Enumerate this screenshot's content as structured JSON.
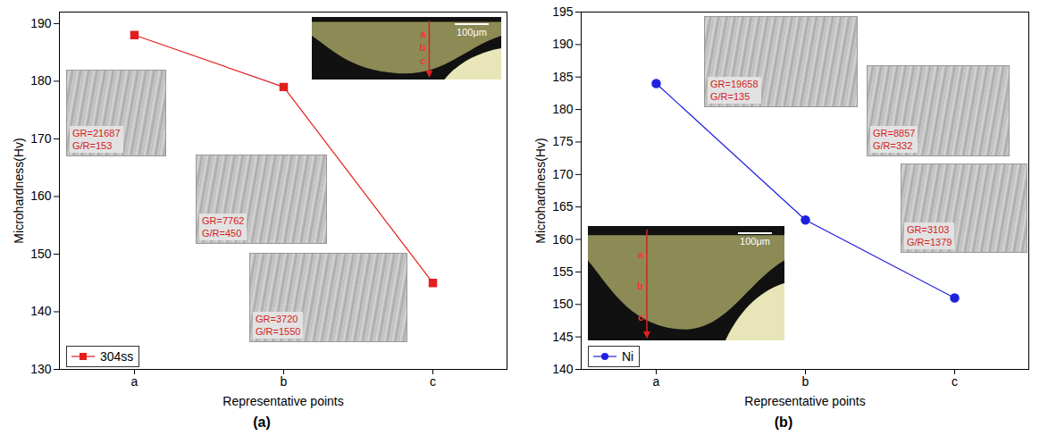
{
  "chart_data": [
    {
      "type": "line",
      "caption": "(a)",
      "x_label": "Representative points",
      "y_label": "Microhardness(Hv)",
      "categories": [
        "a",
        "b",
        "c"
      ],
      "series": [
        {
          "name": "304ss",
          "color": "#e41e1e",
          "marker": "square",
          "values": [
            188,
            179,
            145
          ]
        }
      ],
      "ylim": [
        130,
        192
      ],
      "yticks": [
        130,
        140,
        150,
        160,
        170,
        180,
        190
      ],
      "grid": false,
      "legend": "lower left",
      "annotations": [
        {
          "point": "a",
          "lines": [
            "GR=21687",
            "G/R=153"
          ]
        },
        {
          "point": "b",
          "lines": [
            "GR=7762",
            "G/R=450"
          ]
        },
        {
          "point": "c",
          "lines": [
            "GR=3720",
            "G/R=1550"
          ]
        }
      ],
      "cross_section": {
        "scale_bar": "100μm"
      }
    },
    {
      "type": "line",
      "caption": "(b)",
      "x_label": "Representative points",
      "y_label": "Microhardness(Hv)",
      "categories": [
        "a",
        "b",
        "c"
      ],
      "series": [
        {
          "name": "Ni",
          "color": "#2020e0",
          "marker": "circle",
          "values": [
            184,
            163,
            151
          ]
        }
      ],
      "ylim": [
        140,
        195
      ],
      "yticks": [
        140,
        145,
        150,
        155,
        160,
        165,
        170,
        175,
        180,
        185,
        190,
        195
      ],
      "grid": false,
      "legend": "lower left",
      "annotations": [
        {
          "point": "a",
          "lines": [
            "GR=19658",
            "G/R=135"
          ]
        },
        {
          "point": "b",
          "lines": [
            "GR=8857",
            "G/R=332"
          ]
        },
        {
          "point": "c",
          "lines": [
            "GR=3103",
            "G/R=1379"
          ]
        }
      ],
      "cross_section": {
        "scale_bar": "100μm"
      }
    }
  ]
}
